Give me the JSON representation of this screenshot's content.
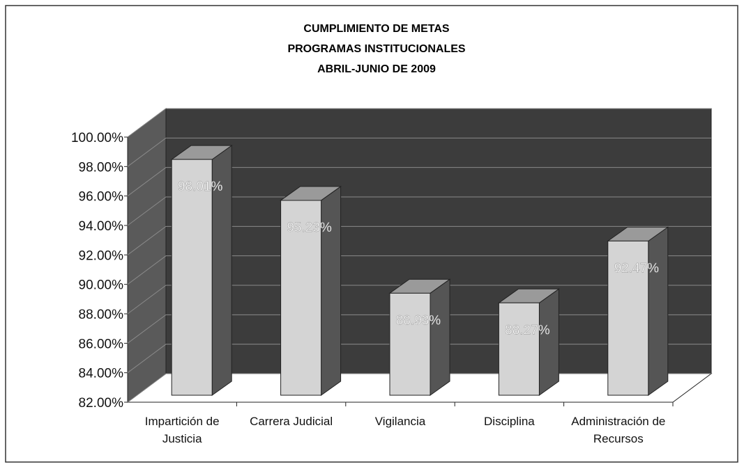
{
  "chart_data": {
    "type": "bar3d",
    "title": [
      "CUMPLIMIENTO DE METAS",
      "PROGRAMAS INSTITUCIONALES",
      "ABRIL-JUNIO DE 2009"
    ],
    "categories": [
      "Impartición de Justicia",
      "Carrera Judicial",
      "Vigilancia",
      "Disciplina",
      "Administración de Recursos"
    ],
    "values": [
      98.01,
      95.23,
      88.93,
      88.27,
      92.47
    ],
    "value_labels": [
      "98.01%",
      "95.23%",
      "88.93%",
      "88.27%",
      "92.47%"
    ],
    "color": "#d4d4d4",
    "ylim": [
      82,
      100
    ],
    "yticks": [
      {
        "value": 82,
        "label": "82.00%"
      },
      {
        "value": 84,
        "label": "84.00%"
      },
      {
        "value": 86,
        "label": "86.00%"
      },
      {
        "value": 88,
        "label": "88.00%"
      },
      {
        "value": 90,
        "label": "90.00%"
      },
      {
        "value": 92,
        "label": "92.00%"
      },
      {
        "value": 94,
        "label": "94.00%"
      },
      {
        "value": 96,
        "label": "96.00%"
      },
      {
        "value": 98,
        "label": "98.00%"
      },
      {
        "value": 100,
        "label": "100.00%"
      }
    ],
    "grid": true
  }
}
